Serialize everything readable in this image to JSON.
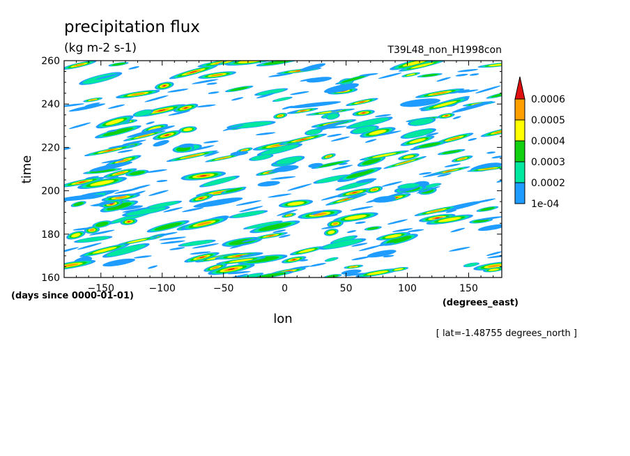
{
  "chart_data": {
    "type": "heatmap",
    "title": "precipitation flux",
    "units": "(kg m-2 s-1)",
    "run_label": "T39L48_non_H1998con",
    "xlabel": "lon",
    "x_units": "(degrees_east)",
    "ylabel": "time",
    "y_units": "(days since 0000-01-01)",
    "footnote": "[ lat=-1.48755 degrees_north ]",
    "xlim": [
      -180,
      177
    ],
    "ylim": [
      160,
      260
    ],
    "x_ticks": [
      -150,
      -100,
      -50,
      0,
      50,
      100,
      150
    ],
    "y_ticks": [
      160,
      180,
      200,
      220,
      240,
      260
    ],
    "grid": false,
    "legend_position": "right",
    "colorbar": {
      "levels": [
        "1e-04",
        "0.0002",
        "0.0003",
        "0.0004",
        "0.0005",
        "0.0006"
      ],
      "colors": [
        "#1e9cff",
        "#00e8a0",
        "#10d010",
        "#ffff00",
        "#ffa000",
        "#e01010"
      ]
    }
  }
}
